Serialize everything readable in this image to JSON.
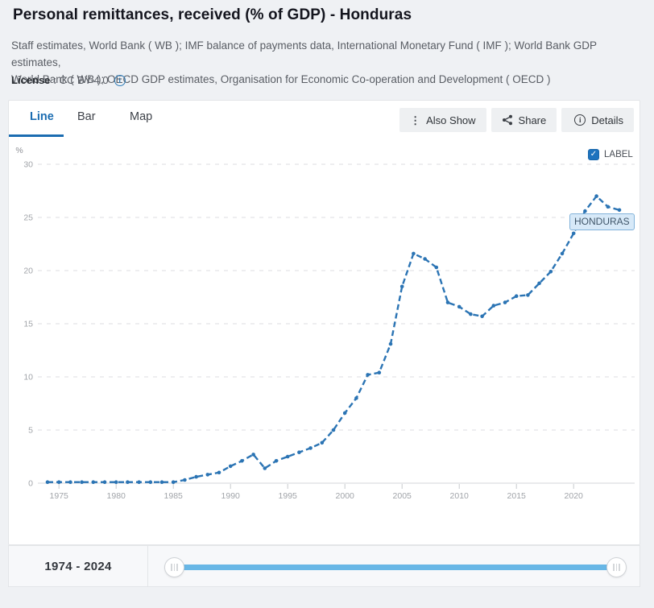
{
  "header": {
    "title": "Personal remittances, received (% of GDP) - Honduras",
    "subtitle_line1": "Staff estimates, World Bank ( WB ); IMF balance of payments data, International Monetary Fund ( IMF ); World Bank GDP estimates,",
    "subtitle_line2": "World Bank ( WB ); OECD GDP estimates, Organisation for Economic Co-operation and Development ( OECD )",
    "license_label": "License",
    "license_value": ": CC BY-4.0",
    "license_info_icon": "info-circle-icon"
  },
  "toolbar": {
    "tabs": [
      {
        "label": "Line",
        "active": true
      },
      {
        "label": "Bar",
        "active": false
      },
      {
        "label": "Map",
        "active": false
      }
    ],
    "buttons": [
      {
        "label": "Also Show",
        "icon": "vertical-ellipsis-icon"
      },
      {
        "label": "Share",
        "icon": "share-icon"
      },
      {
        "label": "Details",
        "icon": "info-circle-icon"
      }
    ]
  },
  "chart_area": {
    "unit_label": "%",
    "legend_checkbox": {
      "checked": true,
      "label": "LABEL",
      "checkmark": "✓"
    },
    "series_tag": "HONDURAS"
  },
  "range_slider": {
    "label": "1974 - 2024",
    "min_year": 1974,
    "max_year": 2024
  },
  "colors": {
    "accent_blue": "#1b6cb1",
    "line_blue": "#2b74b4",
    "slider_blue": "#68b7e6",
    "tag_bg": "#d7e9f8",
    "grid_gray": "#dcdde0",
    "axis_text": "#a1a4a9"
  },
  "chart_data": {
    "type": "line",
    "title": "Personal remittances, received (% of GDP) - Honduras",
    "ylabel": "%",
    "ylim": [
      0,
      30
    ],
    "yticks": [
      0,
      5,
      10,
      15,
      20,
      25,
      30
    ],
    "xticks": [
      1975,
      1980,
      1985,
      1990,
      1995,
      2000,
      2005,
      2010,
      2015,
      2020
    ],
    "grid": "horizontal-dashed",
    "legend_position": "top-right",
    "line_style": "dash-dot with point markers",
    "x": [
      1974,
      1975,
      1976,
      1977,
      1978,
      1979,
      1980,
      1981,
      1982,
      1983,
      1984,
      1985,
      1986,
      1987,
      1988,
      1989,
      1990,
      1991,
      1992,
      1993,
      1994,
      1995,
      1996,
      1997,
      1998,
      1999,
      2000,
      2001,
      2002,
      2003,
      2004,
      2005,
      2006,
      2007,
      2008,
      2009,
      2010,
      2011,
      2012,
      2013,
      2014,
      2015,
      2016,
      2017,
      2018,
      2019,
      2020,
      2021,
      2022,
      2023,
      2024
    ],
    "series": [
      {
        "name": "HONDURAS",
        "values": [
          0.1,
          0.1,
          0.1,
          0.1,
          0.1,
          0.1,
          0.1,
          0.1,
          0.1,
          0.1,
          0.1,
          0.1,
          0.3,
          0.6,
          0.8,
          1.0,
          1.6,
          2.1,
          2.7,
          1.4,
          2.1,
          2.5,
          2.9,
          3.3,
          3.8,
          5.0,
          6.6,
          8.0,
          10.2,
          10.4,
          13.1,
          18.5,
          21.6,
          21.1,
          20.3,
          17.0,
          16.6,
          15.9,
          15.7,
          16.7,
          17.0,
          17.6,
          17.7,
          18.8,
          19.9,
          21.6,
          23.5,
          25.6,
          27.0,
          26.0,
          25.7
        ]
      }
    ]
  }
}
